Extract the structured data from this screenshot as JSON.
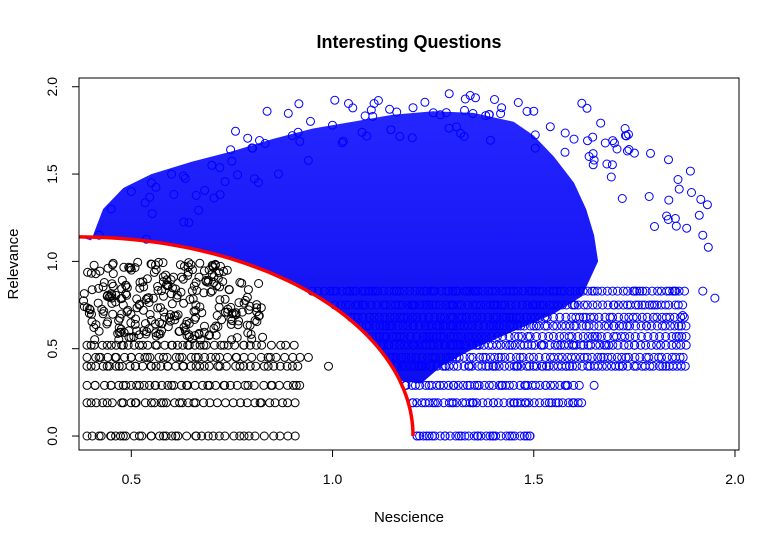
{
  "chart_data": {
    "type": "scatter",
    "title": "Interesting Questions",
    "xlabel": "Nescience",
    "ylabel": "Relevance",
    "xlim": [
      0.37,
      2.01
    ],
    "ylim": [
      -0.08,
      2.05
    ],
    "xticks": [
      "0.5",
      "1.0",
      "1.5",
      "2.0"
    ],
    "xtick_values": [
      0.5,
      1.0,
      1.5,
      2.0
    ],
    "yticks": [
      "0.0",
      "0.5",
      "1.0",
      "1.5",
      "2.0"
    ],
    "ytick_values": [
      0.0,
      0.5,
      1.0,
      1.5,
      2.0
    ],
    "grid": false,
    "marker": "open-circle",
    "colors": {
      "below_frontier": "#000000",
      "above_frontier": "#0000ff",
      "frontier": "#ff0000"
    },
    "frontier": {
      "shape": "quarter-ellipse",
      "x_at_zero_relevance": 1.2,
      "y_at_left_edge": 1.14,
      "points": [
        [
          0.37,
          1.14
        ],
        [
          0.5,
          1.12
        ],
        [
          0.6,
          1.08
        ],
        [
          0.7,
          1.02
        ],
        [
          0.8,
          0.94
        ],
        [
          0.9,
          0.84
        ],
        [
          1.0,
          0.71
        ],
        [
          1.08,
          0.57
        ],
        [
          1.14,
          0.42
        ],
        [
          1.18,
          0.25
        ],
        [
          1.2,
          0.0
        ]
      ]
    },
    "black_levels": [
      0.0,
      0.19,
      0.29,
      0.4,
      0.45,
      0.52
    ],
    "blue_levels": [
      0.0,
      0.19,
      0.29,
      0.4,
      0.45,
      0.52,
      0.57,
      0.63,
      0.68,
      0.75,
      0.83
    ],
    "black_points": [
      [
        0.42,
        0.0
      ],
      [
        0.45,
        0.0
      ],
      [
        0.48,
        0.0
      ],
      [
        0.52,
        0.0
      ],
      [
        0.55,
        0.0
      ],
      [
        0.58,
        0.0
      ],
      [
        0.61,
        0.0
      ],
      [
        0.66,
        0.0
      ],
      [
        0.78,
        0.0
      ],
      [
        0.4,
        0.19
      ],
      [
        0.44,
        0.19
      ],
      [
        0.48,
        0.19
      ],
      [
        0.51,
        0.19
      ],
      [
        0.55,
        0.19
      ],
      [
        0.58,
        0.19
      ],
      [
        0.62,
        0.19
      ],
      [
        0.66,
        0.19
      ],
      [
        0.82,
        0.19
      ],
      [
        0.41,
        0.29
      ],
      [
        0.45,
        0.29
      ],
      [
        0.48,
        0.29
      ],
      [
        0.52,
        0.29
      ],
      [
        0.56,
        0.29
      ],
      [
        0.6,
        0.29
      ],
      [
        0.64,
        0.29
      ],
      [
        0.69,
        0.29
      ],
      [
        0.73,
        0.29
      ],
      [
        0.79,
        0.29
      ],
      [
        0.85,
        0.29
      ],
      [
        0.91,
        0.29
      ],
      [
        0.4,
        0.4
      ],
      [
        0.44,
        0.4
      ],
      [
        0.47,
        0.4
      ],
      [
        0.51,
        0.4
      ],
      [
        0.55,
        0.4
      ],
      [
        0.59,
        0.4
      ],
      [
        0.63,
        0.4
      ],
      [
        0.67,
        0.4
      ],
      [
        0.72,
        0.4
      ],
      [
        0.77,
        0.4
      ],
      [
        0.84,
        0.4
      ],
      [
        0.99,
        0.4
      ],
      [
        0.42,
        0.45
      ],
      [
        0.46,
        0.45
      ],
      [
        0.5,
        0.45
      ],
      [
        0.54,
        0.45
      ],
      [
        0.58,
        0.45
      ],
      [
        0.62,
        0.45
      ],
      [
        0.66,
        0.45
      ],
      [
        0.71,
        0.45
      ],
      [
        0.76,
        0.45
      ],
      [
        0.84,
        0.45
      ],
      [
        0.94,
        0.45
      ],
      [
        0.4,
        0.52
      ],
      [
        0.44,
        0.52
      ],
      [
        0.48,
        0.52
      ],
      [
        0.52,
        0.52
      ],
      [
        0.56,
        0.52
      ],
      [
        0.6,
        0.52
      ],
      [
        0.64,
        0.52
      ],
      [
        0.68,
        0.52
      ],
      [
        0.73,
        0.52
      ],
      [
        0.78,
        0.52
      ],
      [
        0.42,
        0.6
      ],
      [
        0.47,
        0.62
      ],
      [
        0.52,
        0.58
      ],
      [
        0.57,
        0.65
      ],
      [
        0.62,
        0.6
      ],
      [
        0.66,
        0.68
      ],
      [
        0.71,
        0.63
      ],
      [
        0.75,
        0.7
      ],
      [
        0.43,
        0.7
      ],
      [
        0.48,
        0.75
      ],
      [
        0.53,
        0.72
      ],
      [
        0.58,
        0.8
      ],
      [
        0.63,
        0.76
      ],
      [
        0.68,
        0.82
      ],
      [
        0.72,
        0.78
      ],
      [
        0.44,
        0.8
      ],
      [
        0.49,
        0.85
      ],
      [
        0.54,
        0.9
      ],
      [
        0.59,
        0.86
      ],
      [
        0.64,
        0.92
      ],
      [
        0.69,
        0.88
      ],
      [
        0.5,
        0.95
      ],
      [
        0.56,
        0.98
      ]
    ],
    "blue_points": [
      [
        1.21,
        0.0
      ],
      [
        1.24,
        0.0
      ],
      [
        1.28,
        0.0
      ],
      [
        1.32,
        0.0
      ],
      [
        1.36,
        0.0
      ],
      [
        1.4,
        0.0
      ],
      [
        1.44,
        0.0
      ],
      [
        1.49,
        0.0
      ],
      [
        1.2,
        0.19
      ],
      [
        1.25,
        0.19
      ],
      [
        1.3,
        0.19
      ],
      [
        1.35,
        0.19
      ],
      [
        1.4,
        0.19
      ],
      [
        1.45,
        0.19
      ],
      [
        1.48,
        0.19
      ],
      [
        1.6,
        0.19
      ],
      [
        1.18,
        0.29
      ],
      [
        1.24,
        0.29
      ],
      [
        1.3,
        0.29
      ],
      [
        1.36,
        0.29
      ],
      [
        1.42,
        0.29
      ],
      [
        1.48,
        0.29
      ],
      [
        1.53,
        0.29
      ],
      [
        1.58,
        0.29
      ],
      [
        1.65,
        0.29
      ],
      [
        1.16,
        0.4
      ],
      [
        1.22,
        0.4
      ],
      [
        1.28,
        0.4
      ],
      [
        1.34,
        0.4
      ],
      [
        1.4,
        0.4
      ],
      [
        1.46,
        0.4
      ],
      [
        1.52,
        0.4
      ],
      [
        1.58,
        0.4
      ],
      [
        1.64,
        0.4
      ],
      [
        1.72,
        0.4
      ],
      [
        1.14,
        0.52
      ],
      [
        1.2,
        0.52
      ],
      [
        1.28,
        0.52
      ],
      [
        1.36,
        0.52
      ],
      [
        1.44,
        0.52
      ],
      [
        1.52,
        0.52
      ],
      [
        1.6,
        0.52
      ],
      [
        1.68,
        0.52
      ],
      [
        1.75,
        0.52
      ],
      [
        1.2,
        0.63
      ],
      [
        1.3,
        0.63
      ],
      [
        1.4,
        0.63
      ],
      [
        1.5,
        0.63
      ],
      [
        1.6,
        0.63
      ],
      [
        1.7,
        0.63
      ],
      [
        1.78,
        0.63
      ],
      [
        1.2,
        0.75
      ],
      [
        1.3,
        0.75
      ],
      [
        1.4,
        0.75
      ],
      [
        1.5,
        0.75
      ],
      [
        1.6,
        0.75
      ],
      [
        1.7,
        0.75
      ],
      [
        1.8,
        0.75
      ],
      [
        1.25,
        0.83
      ],
      [
        1.35,
        0.83
      ],
      [
        1.45,
        0.83
      ],
      [
        1.55,
        0.83
      ],
      [
        1.65,
        0.83
      ],
      [
        1.75,
        0.83
      ],
      [
        1.85,
        0.83
      ],
      [
        1.87,
        0.69
      ],
      [
        1.92,
        0.83
      ],
      [
        1.95,
        0.79
      ],
      [
        1.92,
        1.15
      ],
      [
        1.83,
        1.26
      ],
      [
        1.75,
        1.62
      ],
      [
        1.72,
        1.36
      ],
      [
        1.8,
        1.2
      ],
      [
        1.88,
        1.19
      ],
      [
        1.29,
        1.96
      ],
      [
        1.33,
        1.93
      ],
      [
        1.2,
        1.88
      ],
      [
        1.42,
        1.88
      ],
      [
        1.5,
        1.86
      ],
      [
        1.1,
        1.83
      ],
      [
        1.6,
        1.7
      ],
      [
        1.65,
        1.58
      ],
      [
        0.42,
        1.15
      ],
      [
        0.45,
        1.3
      ],
      [
        0.5,
        1.4
      ],
      [
        0.55,
        1.45
      ],
      [
        0.6,
        1.5
      ],
      [
        0.7,
        1.55
      ],
      [
        0.8,
        1.65
      ],
      [
        0.9,
        1.72
      ],
      [
        1.0,
        1.78
      ]
    ]
  }
}
